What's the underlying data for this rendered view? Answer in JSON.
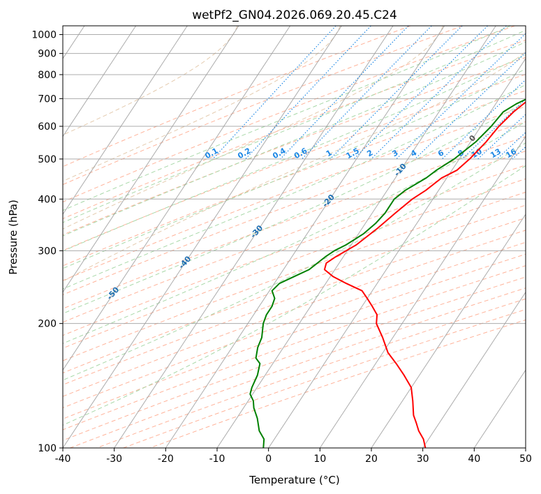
{
  "chart_data": {
    "type": "line",
    "title": "wetPf2_GN04.2026.069.20.45.C24",
    "xlabel": "Temperature (°C)",
    "ylabel": "Pressure (hPa)",
    "xlim": [
      -40,
      50
    ],
    "ylim": [
      1050,
      100
    ],
    "x_ticks": [
      "-40",
      "-30",
      "-20",
      "-10",
      "0",
      "10",
      "20",
      "30",
      "40",
      "50"
    ],
    "y_ticks": [
      "100",
      "200",
      "300",
      "400",
      "500",
      "600",
      "700",
      "800",
      "900",
      "1000"
    ],
    "colors": {
      "temperature": "#ff0000",
      "dewpoint": "#008000",
      "isotherm": "#9e9e9e",
      "isobar": "#9e9e9e",
      "dry_adiabat": "#ffb39a",
      "moist_adiabat": "#a8d8a8",
      "mixing_ratio": "#1e88e5",
      "ccl_arc": "#d8b48a"
    },
    "series": [
      {
        "name": "Temperature",
        "points": [
          [
            12.5,
            925
          ],
          [
            11,
            900
          ],
          [
            9,
            850
          ],
          [
            8,
            800
          ],
          [
            7.5,
            750
          ],
          [
            6,
            700
          ],
          [
            4.5,
            650
          ],
          [
            3.5,
            600
          ],
          [
            3,
            550
          ],
          [
            2,
            500
          ],
          [
            1,
            470
          ],
          [
            -1,
            450
          ],
          [
            -2.5,
            420
          ],
          [
            -4,
            400
          ],
          [
            -5.5,
            370
          ],
          [
            -7,
            340
          ],
          [
            -9,
            310
          ],
          [
            -11.5,
            290
          ],
          [
            -12.5,
            280
          ],
          [
            -12,
            270
          ],
          [
            -9.5,
            260
          ],
          [
            -6,
            250
          ],
          [
            -2,
            240
          ],
          [
            0,
            230
          ],
          [
            2,
            220
          ],
          [
            4,
            210
          ],
          [
            5,
            200
          ],
          [
            8,
            185
          ],
          [
            11,
            170
          ],
          [
            14,
            160
          ],
          [
            17,
            150
          ],
          [
            20,
            140
          ],
          [
            22,
            130
          ],
          [
            24,
            120
          ],
          [
            25.5,
            115
          ],
          [
            27,
            110
          ],
          [
            29,
            105
          ],
          [
            30.5,
            100
          ]
        ]
      },
      {
        "name": "Dewpoint",
        "points": [
          [
            7.5,
            920
          ],
          [
            7.5,
            900
          ],
          [
            8,
            875
          ],
          [
            7,
            850
          ],
          [
            6.5,
            800
          ],
          [
            6,
            750
          ],
          [
            5.5,
            700
          ],
          [
            4,
            680
          ],
          [
            2.5,
            650
          ],
          [
            2,
            600
          ],
          [
            1,
            550
          ],
          [
            -1,
            500
          ],
          [
            -3,
            470
          ],
          [
            -4,
            450
          ],
          [
            -6.5,
            420
          ],
          [
            -7.5,
            400
          ],
          [
            -7.5,
            370
          ],
          [
            -8,
            350
          ],
          [
            -9,
            330
          ],
          [
            -11,
            310
          ],
          [
            -12.5,
            300
          ],
          [
            -13.5,
            290
          ],
          [
            -15,
            270
          ],
          [
            -17,
            260
          ],
          [
            -19,
            250
          ],
          [
            -19.5,
            240
          ],
          [
            -18,
            230
          ],
          [
            -17.5,
            220
          ],
          [
            -17.5,
            210
          ],
          [
            -17,
            200
          ],
          [
            -15.5,
            185
          ],
          [
            -15,
            175
          ],
          [
            -14,
            165
          ],
          [
            -12.5,
            160
          ],
          [
            -11.5,
            150
          ],
          [
            -11,
            140
          ],
          [
            -10.5,
            135
          ],
          [
            -9,
            130
          ],
          [
            -8,
            125
          ],
          [
            -6,
            118
          ],
          [
            -4,
            110
          ],
          [
            -2,
            105
          ],
          [
            -1,
            100
          ]
        ]
      }
    ],
    "isotherm_values": [
      "-100",
      "-90",
      "-80",
      "-70",
      "-60",
      "-50",
      "-40",
      "-30",
      "-20",
      "-10",
      "0",
      "10",
      "20",
      "30",
      "40"
    ],
    "mixing_ratio_values": [
      "0.1",
      "0.2",
      "0.4",
      "0.6",
      "1",
      "1.5",
      "2",
      "3",
      "4",
      "6",
      "8",
      "10",
      "13",
      "16",
      "20",
      "25",
      "30",
      "36"
    ]
  }
}
